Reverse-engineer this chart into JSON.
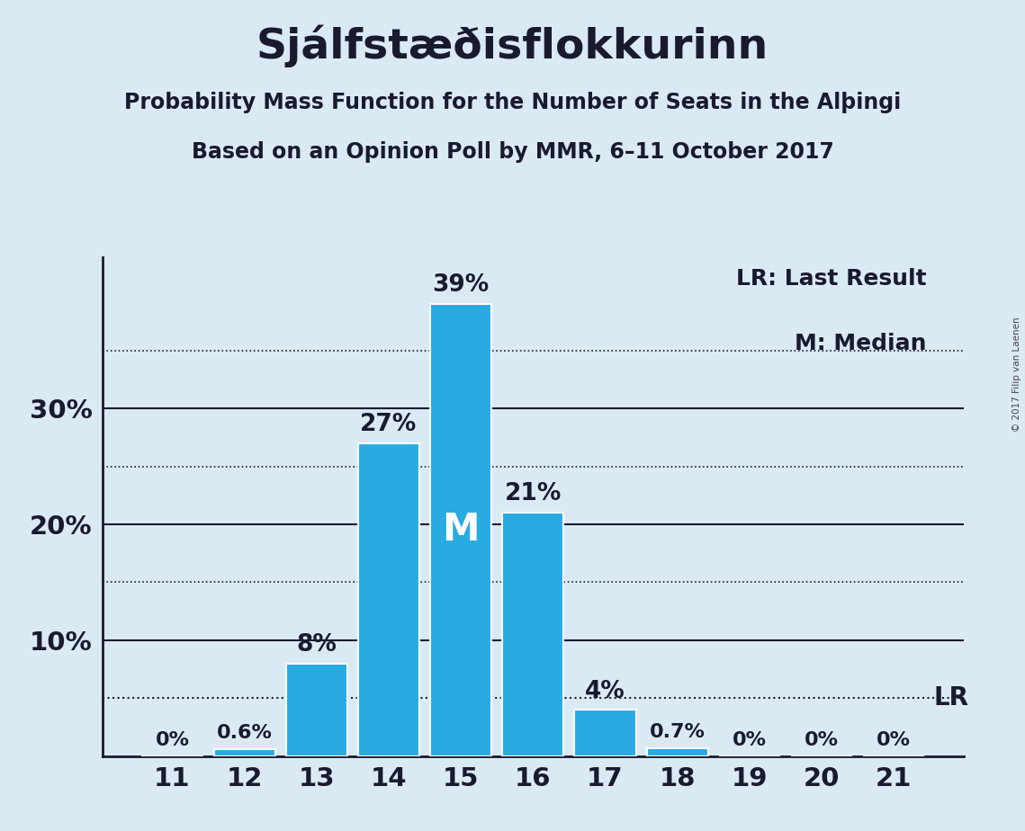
{
  "title": "Sjálfstæðisflokkurinn",
  "subtitle1": "Probability Mass Function for the Number of Seats in the Alþинги",
  "subtitle1_clean": "Probability Mass Function for the Number of Seats in the Alþingi",
  "subtitle2": "Based on an Opinion Poll by MMR, 6–11 October 2017",
  "copyright": "© 2017 Filip van Laenen",
  "categories": [
    11,
    12,
    13,
    14,
    15,
    16,
    17,
    18,
    19,
    20,
    21
  ],
  "values": [
    0.0,
    0.6,
    8.0,
    27.0,
    39.0,
    21.0,
    4.0,
    0.7,
    0.0,
    0.0,
    0.0
  ],
  "bar_color": "#29ABE2",
  "background_color": "#DAEAF5",
  "text_color": "#1a1a2e",
  "label_texts": [
    "0%",
    "0.6%",
    "8%",
    "27%",
    "39%",
    "21%",
    "4%",
    "0.7%",
    "0%",
    "0%",
    "0%"
  ],
  "median_bar": 15,
  "median_label": "M",
  "lr_value": 5.0,
  "lr_label": "LR",
  "yticks": [
    10,
    20,
    30
  ],
  "ytick_labels": [
    "10%",
    "20%",
    "30%"
  ],
  "solid_yticks": [
    10,
    20,
    30
  ],
  "dotted_yticks": [
    5,
    15,
    25,
    35
  ],
  "ymax": 43,
  "legend_text1": "LR: Last Result",
  "legend_text2": "M: Median",
  "title_fontsize": 34,
  "subtitle_fontsize": 17,
  "tick_fontsize": 21,
  "label_fontsize_large": 19,
  "label_fontsize_small": 16,
  "median_fontsize": 30,
  "legend_fontsize": 18,
  "lr_fontsize": 20
}
